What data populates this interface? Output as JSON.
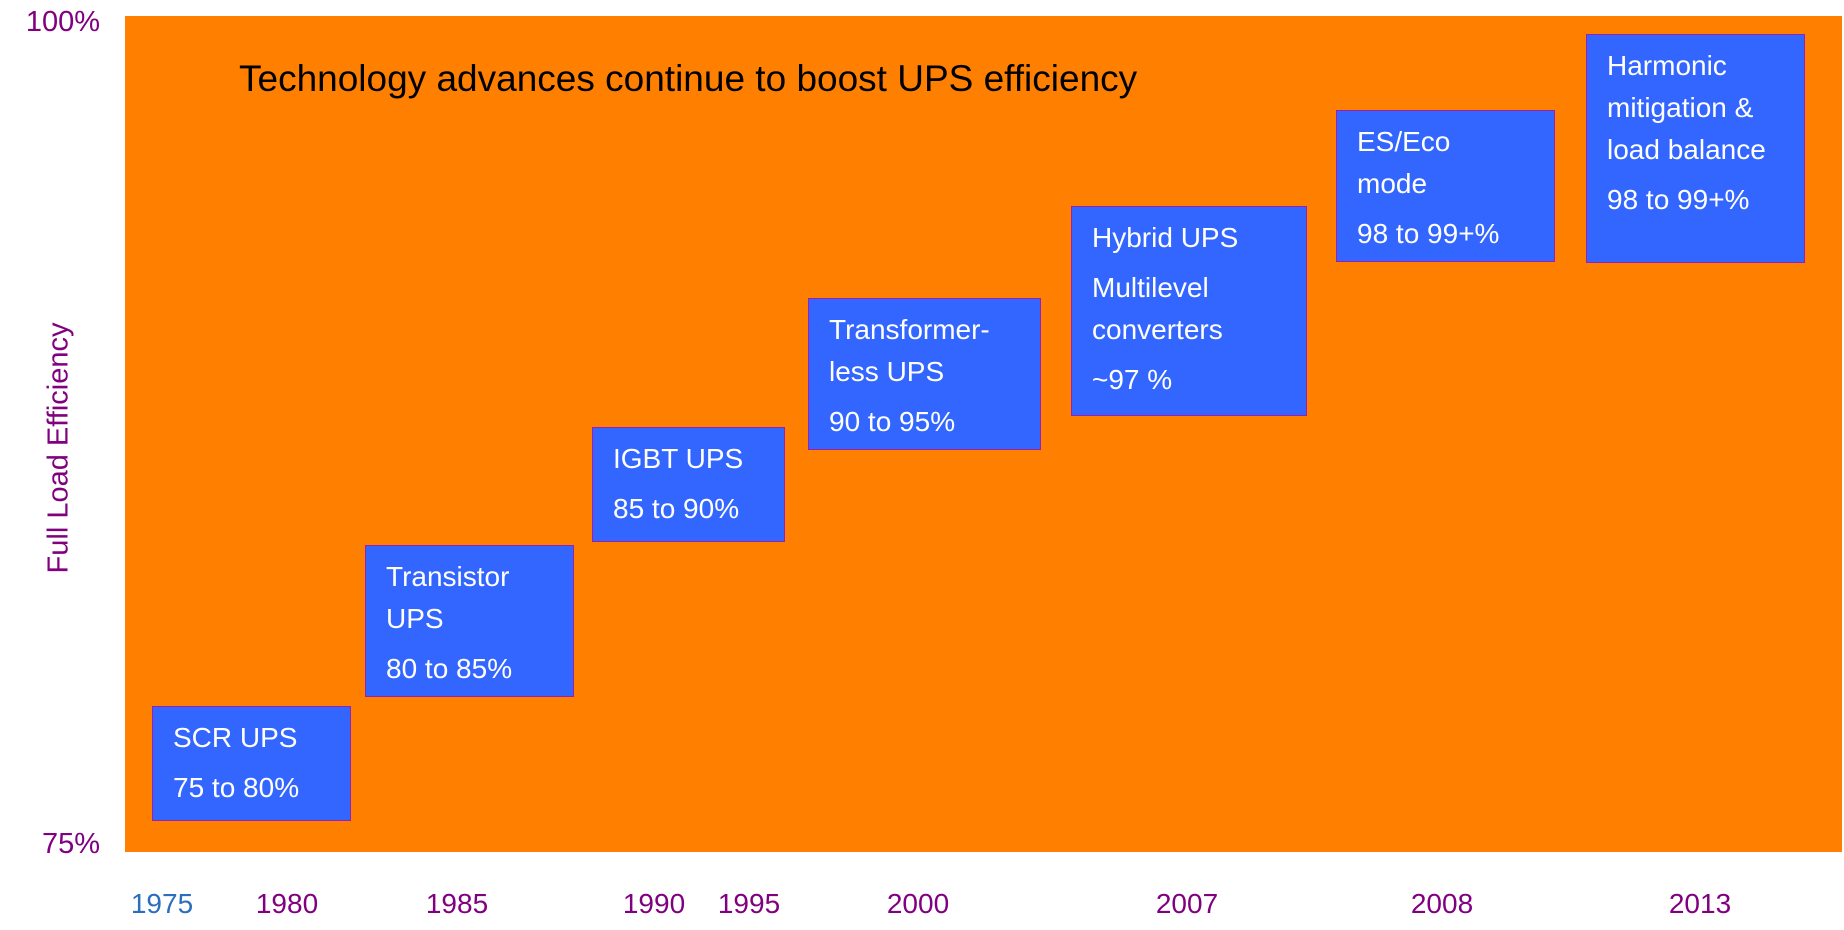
{
  "title": "Technology advances continue to boost UPS efficiency",
  "y_axis": {
    "label": "Full Load Efficiency",
    "top": "100%",
    "bottom": "75%"
  },
  "years": [
    "1975",
    "1980",
    "1985",
    "1990",
    "1995",
    "2000",
    "2007",
    "2008",
    "2013"
  ],
  "boxes": [
    {
      "paragraphs": [
        [
          "SCR UPS"
        ],
        [
          "75 to 80%"
        ]
      ]
    },
    {
      "paragraphs": [
        [
          "Transistor",
          "UPS"
        ],
        [
          "80 to 85%"
        ]
      ]
    },
    {
      "paragraphs": [
        [
          "IGBT UPS"
        ],
        [
          "85 to 90%"
        ]
      ]
    },
    {
      "paragraphs": [
        [
          "Transformer-",
          "less UPS"
        ],
        [
          "90 to 95%"
        ]
      ]
    },
    {
      "paragraphs": [
        [
          "Hybrid UPS"
        ],
        [
          "Multilevel",
          "converters"
        ],
        [
          "~97 %"
        ]
      ]
    },
    {
      "paragraphs": [
        [
          "ES/Eco",
          "mode"
        ],
        [
          "98 to 99+%"
        ]
      ]
    },
    {
      "paragraphs": [
        [
          "Harmonic",
          "mitigation &",
          "load balance"
        ],
        [
          "98 to 99+%"
        ]
      ]
    }
  ]
}
